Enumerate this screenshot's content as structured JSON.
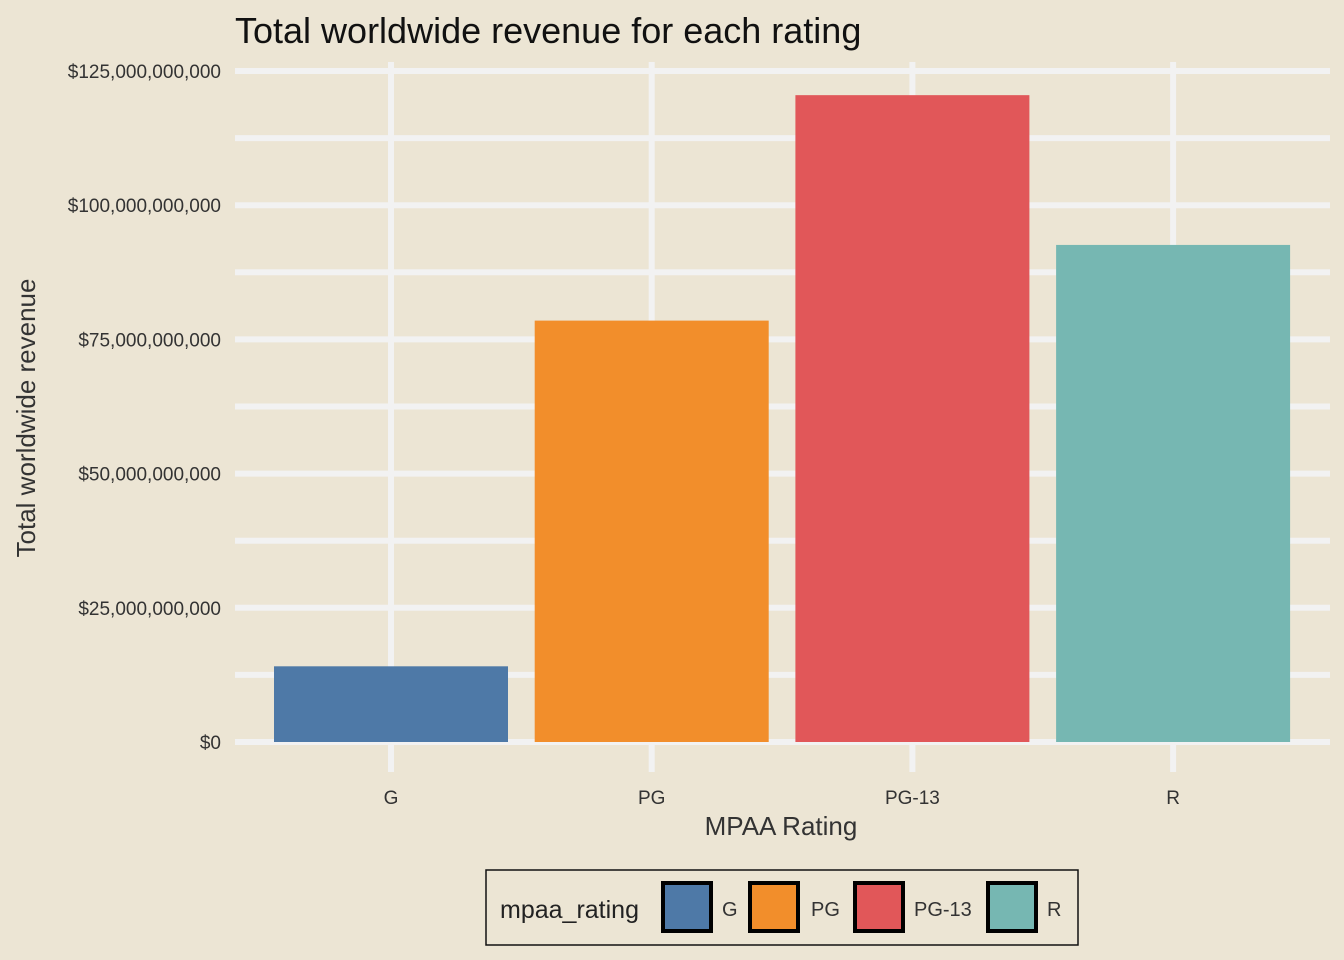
{
  "chart_data": {
    "type": "bar",
    "title": "Total worldwide revenue for each rating",
    "xlabel": "MPAA Rating",
    "ylabel": "Total worldwide revenue",
    "categories": [
      "G",
      "PG",
      "PG-13",
      "R"
    ],
    "values": [
      14100000000,
      78500000000,
      120500000000,
      92600000000
    ],
    "colors": [
      "#4e79a7",
      "#f28e2b",
      "#e15759",
      "#76b7b2"
    ],
    "ylim": [
      0,
      125000000000
    ],
    "y_ticks": [
      0,
      25000000000,
      50000000000,
      75000000000,
      100000000000,
      125000000000
    ],
    "y_tick_labels": [
      "$0",
      "$25,000,000,000",
      "$50,000,000,000",
      "$75,000,000,000",
      "$100,000,000,000",
      "$125,000,000,000"
    ],
    "grid": true,
    "legend": {
      "title": "mpaa_rating",
      "position": "bottom",
      "entries": [
        "G",
        "PG",
        "PG-13",
        "R"
      ]
    }
  }
}
